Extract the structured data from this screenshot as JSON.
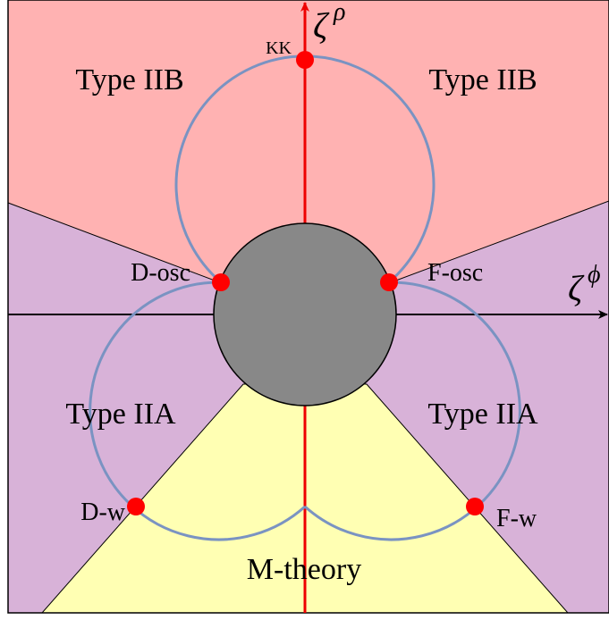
{
  "regions": {
    "top_left": "Type IIB",
    "top_right": "Type IIB",
    "bottom_left": "Type IIA",
    "bottom_right": "Type IIA",
    "bottom": "M-theory"
  },
  "points": {
    "top": "KK",
    "left_osc": "D-osc",
    "right_osc": "F-osc",
    "left_w": "D-w",
    "right_w": "F-w"
  },
  "axes": {
    "vertical": {
      "symbol": "ζ",
      "superscript": "ρ"
    },
    "horizontal": {
      "symbol": "ζ",
      "superscript": "ϕ"
    }
  }
}
